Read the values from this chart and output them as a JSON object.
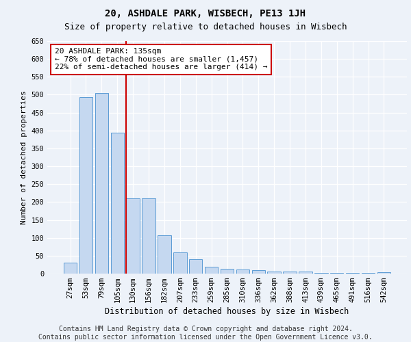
{
  "title1": "20, ASHDALE PARK, WISBECH, PE13 1JH",
  "title2": "Size of property relative to detached houses in Wisbech",
  "xlabel": "Distribution of detached houses by size in Wisbech",
  "ylabel": "Number of detached properties",
  "categories": [
    "27sqm",
    "53sqm",
    "79sqm",
    "105sqm",
    "130sqm",
    "156sqm",
    "182sqm",
    "207sqm",
    "233sqm",
    "259sqm",
    "285sqm",
    "310sqm",
    "336sqm",
    "362sqm",
    "388sqm",
    "413sqm",
    "439sqm",
    "465sqm",
    "491sqm",
    "516sqm",
    "542sqm"
  ],
  "values": [
    30,
    493,
    505,
    393,
    211,
    211,
    107,
    59,
    40,
    19,
    14,
    12,
    10,
    5,
    5,
    5,
    2,
    1,
    1,
    1,
    3
  ],
  "bar_color": "#c5d8f0",
  "bar_edge_color": "#5b9bd5",
  "annotation_line1": "20 ASHDALE PARK: 135sqm",
  "annotation_line2": "← 78% of detached houses are smaller (1,457)",
  "annotation_line3": "22% of semi-detached houses are larger (414) →",
  "annotation_box_color": "#ffffff",
  "annotation_box_edge": "#cc0000",
  "vline_color": "#cc0000",
  "vline_xidx": 4,
  "ylim": [
    0,
    650
  ],
  "yticks": [
    0,
    50,
    100,
    150,
    200,
    250,
    300,
    350,
    400,
    450,
    500,
    550,
    600,
    650
  ],
  "footer_line1": "Contains HM Land Registry data © Crown copyright and database right 2024.",
  "footer_line2": "Contains public sector information licensed under the Open Government Licence v3.0.",
  "background_color": "#edf2f9",
  "title1_fontsize": 10,
  "title2_fontsize": 9,
  "xlabel_fontsize": 8.5,
  "ylabel_fontsize": 8,
  "annot_fontsize": 8,
  "footer_fontsize": 7,
  "tick_fontsize": 7.5
}
